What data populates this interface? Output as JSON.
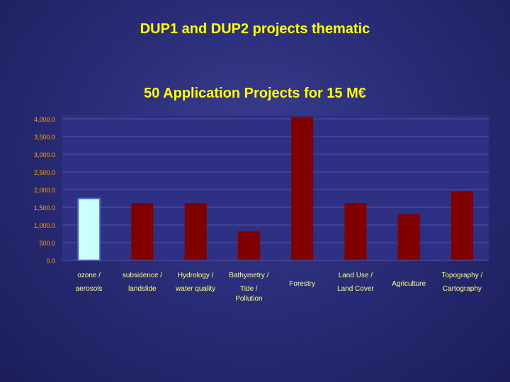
{
  "slide": {
    "title": "DUP1 and DUP2 projects thematic"
  },
  "chart_data": {
    "type": "bar",
    "title": "50 Application Projects for 15 M€",
    "xlabel": "",
    "ylabel": "",
    "ylim": [
      0,
      4000
    ],
    "yticks": [
      "0.0",
      "500.0",
      "1,000.0",
      "1,500.0",
      "2,000.0",
      "2,500.0",
      "3,000.0",
      "3,500.0",
      "4,000.0"
    ],
    "categories": [
      [
        "ozone /",
        "aerosols"
      ],
      [
        "subsidence /",
        "landslide"
      ],
      [
        "Hydrology /",
        "water quality"
      ],
      [
        "Bathymetry /",
        "Tide /",
        "Pollution"
      ],
      [
        "Forestry"
      ],
      [
        "Land Use /",
        "Land Cover"
      ],
      [
        "Agriculture"
      ],
      [
        "Topography /",
        "Cartography"
      ]
    ],
    "values": [
      1750,
      1620,
      1620,
      820,
      4050,
      1620,
      1300,
      1950
    ],
    "colors": {
      "highlight": "#ccffff",
      "highlight_stroke": "#4466cc",
      "bar": "#800000",
      "plot_bg": "#2e3083",
      "grid": "#5055a8",
      "axis_text": "#ffa200",
      "label_text": "#ffff88"
    },
    "grid": true
  }
}
